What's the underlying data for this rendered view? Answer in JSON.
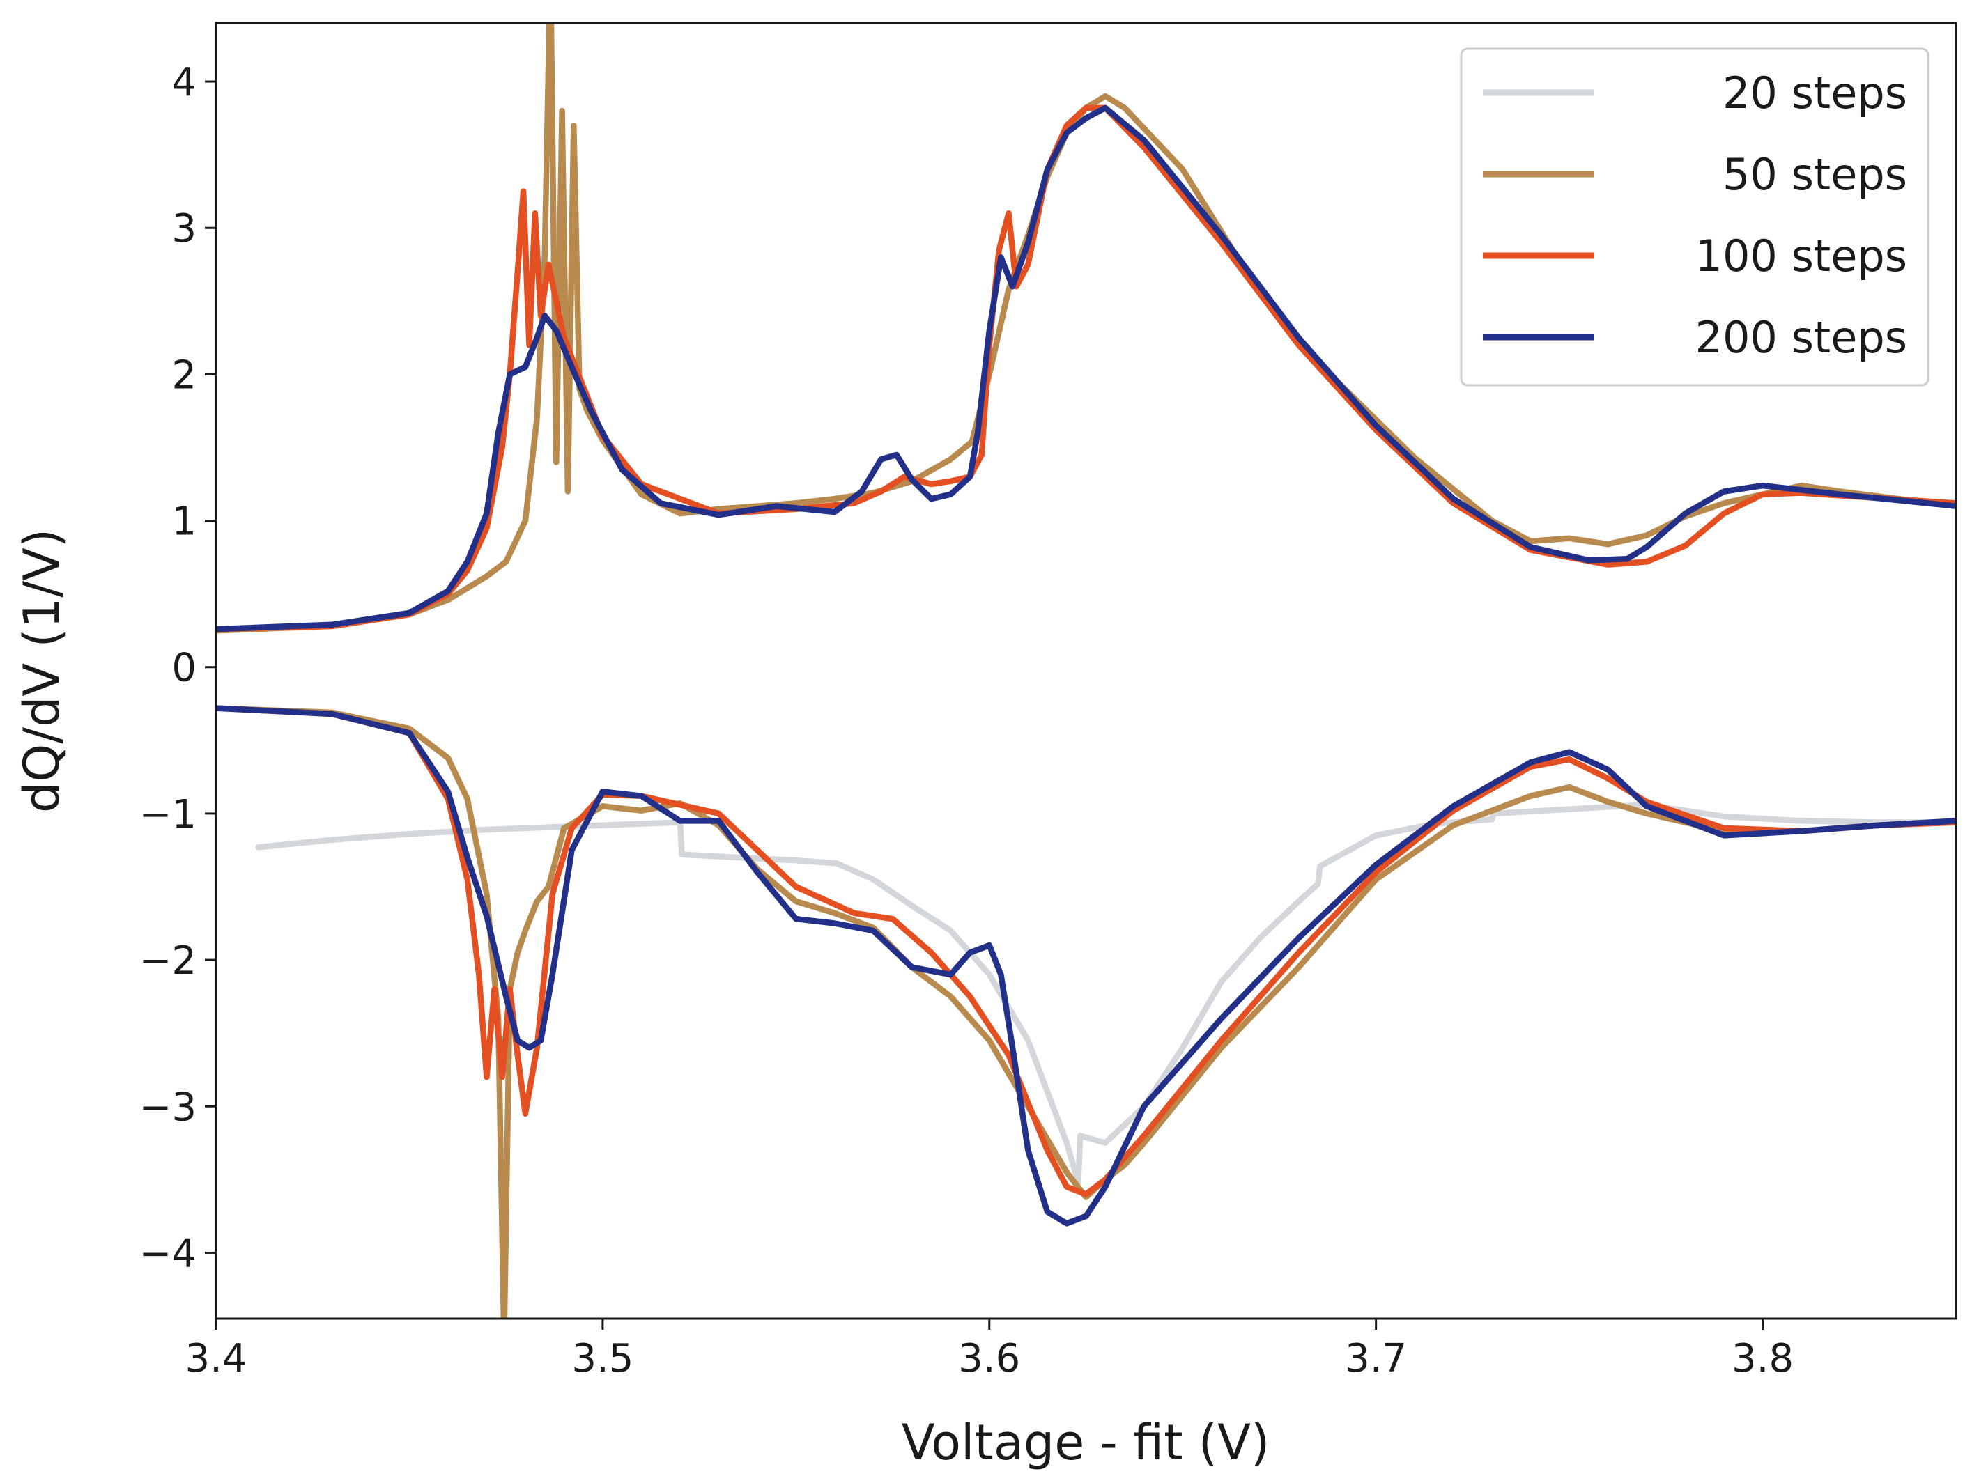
{
  "chart_data": {
    "type": "line",
    "title": "",
    "xlabel": "Voltage - fit (V)",
    "ylabel": "dQ/dV (1/V)",
    "xlim": [
      3.4,
      3.85
    ],
    "ylim": [
      -4.45,
      4.4
    ],
    "xticks": [
      3.4,
      3.5,
      3.6,
      3.7,
      3.8
    ],
    "xtick_labels": [
      "3.4",
      "3.5",
      "3.6",
      "3.7",
      "3.8"
    ],
    "yticks": [
      -4,
      -3,
      -2,
      -1,
      0,
      1,
      2,
      3,
      4
    ],
    "ytick_labels": [
      "−4",
      "−3",
      "−2",
      "−1",
      "0",
      "1",
      "2",
      "3",
      "4"
    ],
    "grid": false,
    "legend_position": "top-right",
    "series": [
      {
        "name": "20 steps",
        "label": "20 steps",
        "color": "#d3d6da",
        "segments": [
          {
            "x": [
              3.411,
              3.43,
              3.45,
              3.47,
              3.49,
              3.51,
              3.52,
              3.5205,
              3.535,
              3.55,
              3.5605,
              3.57,
              3.58,
              3.59,
              3.6,
              3.61,
              3.62,
              3.623,
              3.6235,
              3.63,
              3.64,
              3.65,
              3.66,
              3.67,
              3.68,
              3.685,
              3.6855,
              3.7,
              3.715,
              3.73,
              3.7305,
              3.75,
              3.77,
              3.79,
              3.81,
              3.83,
              3.85
            ],
            "y": [
              -1.23,
              -1.18,
              -1.14,
              -1.11,
              -1.09,
              -1.07,
              -1.06,
              -1.28,
              -1.3,
              -1.32,
              -1.34,
              -1.45,
              -1.63,
              -1.8,
              -2.1,
              -2.55,
              -3.25,
              -3.52,
              -3.2,
              -3.25,
              -3.0,
              -2.6,
              -2.15,
              -1.85,
              -1.6,
              -1.48,
              -1.36,
              -1.15,
              -1.07,
              -1.04,
              -1.0,
              -0.97,
              -0.94,
              -1.02,
              -1.05,
              -1.06,
              -1.06
            ]
          }
        ]
      },
      {
        "name": "50 steps",
        "label": "50 steps",
        "color": "#b88a4e",
        "segments": [
          {
            "x": [
              3.4,
              3.43,
              3.45,
              3.46,
              3.47,
              3.475,
              3.48,
              3.483,
              3.485,
              3.4865,
              3.488,
              3.4895,
              3.491,
              3.4925,
              3.494,
              3.496,
              3.5,
              3.51,
              3.52,
              3.53,
              3.54,
              3.55,
              3.56,
              3.57,
              3.58,
              3.59,
              3.5955,
              3.6,
              3.605,
              3.61,
              3.615,
              3.62,
              3.625,
              3.63,
              3.635,
              3.65,
              3.67,
              3.69,
              3.71,
              3.73,
              3.74,
              3.75,
              3.76,
              3.77,
              3.78,
              3.79,
              3.8,
              3.81,
              3.82,
              3.85
            ],
            "y": [
              0.25,
              0.28,
              0.36,
              0.46,
              0.62,
              0.72,
              1.0,
              1.7,
              2.8,
              4.8,
              1.4,
              3.8,
              1.2,
              3.7,
              1.9,
              1.75,
              1.55,
              1.18,
              1.05,
              1.08,
              1.1,
              1.12,
              1.15,
              1.19,
              1.27,
              1.42,
              1.54,
              2.0,
              2.58,
              2.95,
              3.35,
              3.65,
              3.82,
              3.9,
              3.82,
              3.4,
              2.55,
              1.95,
              1.43,
              1.0,
              0.86,
              0.88,
              0.84,
              0.9,
              1.03,
              1.12,
              1.18,
              1.24,
              1.2,
              1.1
            ]
          },
          {
            "x": [
              3.4,
              3.43,
              3.45,
              3.46,
              3.465,
              3.47,
              3.473,
              3.4745,
              3.476,
              3.478,
              3.48,
              3.483,
              3.486,
              3.49,
              3.5,
              3.51,
              3.52,
              3.53,
              3.54,
              3.55,
              3.56,
              3.57,
              3.58,
              3.59,
              3.6,
              3.61,
              3.62,
              3.625,
              3.63,
              3.635,
              3.64,
              3.66,
              3.68,
              3.7,
              3.72,
              3.74,
              3.75,
              3.76,
              3.77,
              3.79,
              3.81,
              3.83,
              3.85
            ],
            "y": [
              -0.28,
              -0.31,
              -0.42,
              -0.62,
              -0.9,
              -1.55,
              -2.4,
              -4.6,
              -2.2,
              -1.95,
              -1.8,
              -1.6,
              -1.5,
              -1.1,
              -0.95,
              -0.98,
              -0.93,
              -1.08,
              -1.38,
              -1.6,
              -1.68,
              -1.78,
              -2.05,
              -2.25,
              -2.55,
              -3.0,
              -3.45,
              -3.62,
              -3.5,
              -3.4,
              -3.25,
              -2.6,
              -2.05,
              -1.45,
              -1.08,
              -0.88,
              -0.82,
              -0.92,
              -1.0,
              -1.12,
              -1.12,
              -1.08,
              -1.06
            ]
          }
        ]
      },
      {
        "name": "100 steps",
        "label": "100 steps",
        "color": "#e45022",
        "segments": [
          {
            "x": [
              3.4,
              3.43,
              3.45,
              3.46,
              3.465,
              3.47,
              3.474,
              3.476,
              3.478,
              3.4795,
              3.481,
              3.4825,
              3.484,
              3.486,
              3.49,
              3.5,
              3.51,
              3.53,
              3.55,
              3.565,
              3.572,
              3.578,
              3.585,
              3.59,
              3.595,
              3.598,
              3.6,
              3.6025,
              3.605,
              3.607,
              3.61,
              3.615,
              3.62,
              3.625,
              3.63,
              3.64,
              3.66,
              3.68,
              3.7,
              3.72,
              3.74,
              3.76,
              3.77,
              3.78,
              3.79,
              3.8,
              3.81,
              3.85
            ],
            "y": [
              0.26,
              0.28,
              0.36,
              0.5,
              0.66,
              0.95,
              1.5,
              2.0,
              2.7,
              3.25,
              2.2,
              3.1,
              2.4,
              2.75,
              2.25,
              1.58,
              1.25,
              1.05,
              1.08,
              1.12,
              1.2,
              1.3,
              1.25,
              1.27,
              1.3,
              1.45,
              2.2,
              2.85,
              3.1,
              2.6,
              2.75,
              3.4,
              3.7,
              3.82,
              3.82,
              3.55,
              2.9,
              2.2,
              1.62,
              1.12,
              0.8,
              0.7,
              0.72,
              0.83,
              1.05,
              1.18,
              1.19,
              1.12
            ]
          },
          {
            "x": [
              3.4,
              3.43,
              3.45,
              3.46,
              3.465,
              3.468,
              3.47,
              3.472,
              3.474,
              3.476,
              3.478,
              3.48,
              3.483,
              3.487,
              3.492,
              3.5,
              3.51,
              3.53,
              3.55,
              3.565,
              3.575,
              3.585,
              3.595,
              3.605,
              3.615,
              3.62,
              3.625,
              3.63,
              3.64,
              3.66,
              3.68,
              3.7,
              3.72,
              3.74,
              3.75,
              3.76,
              3.77,
              3.79,
              3.81,
              3.83,
              3.85
            ],
            "y": [
              -0.28,
              -0.32,
              -0.45,
              -0.9,
              -1.45,
              -2.1,
              -2.8,
              -2.2,
              -2.8,
              -2.2,
              -2.65,
              -3.05,
              -2.6,
              -1.55,
              -1.1,
              -0.87,
              -0.88,
              -1.0,
              -1.5,
              -1.68,
              -1.72,
              -1.95,
              -2.25,
              -2.65,
              -3.3,
              -3.55,
              -3.6,
              -3.5,
              -3.2,
              -2.55,
              -1.95,
              -1.4,
              -0.98,
              -0.68,
              -0.63,
              -0.76,
              -0.92,
              -1.1,
              -1.12,
              -1.08,
              -1.06
            ]
          }
        ]
      },
      {
        "name": "200 steps",
        "label": "200 steps",
        "color": "#23308a",
        "segments": [
          {
            "x": [
              3.4,
              3.43,
              3.45,
              3.46,
              3.465,
              3.47,
              3.473,
              3.476,
              3.48,
              3.483,
              3.485,
              3.488,
              3.492,
              3.497,
              3.505,
              3.515,
              3.53,
              3.545,
              3.56,
              3.567,
              3.572,
              3.576,
              3.58,
              3.585,
              3.59,
              3.595,
              3.597,
              3.6,
              3.603,
              3.606,
              3.61,
              3.615,
              3.62,
              3.625,
              3.63,
              3.64,
              3.66,
              3.68,
              3.7,
              3.72,
              3.74,
              3.755,
              3.765,
              3.77,
              3.78,
              3.79,
              3.8,
              3.82,
              3.85
            ],
            "y": [
              0.26,
              0.29,
              0.37,
              0.52,
              0.72,
              1.05,
              1.6,
              2.0,
              2.05,
              2.25,
              2.4,
              2.3,
              2.05,
              1.75,
              1.35,
              1.12,
              1.04,
              1.1,
              1.06,
              1.2,
              1.42,
              1.45,
              1.28,
              1.15,
              1.18,
              1.3,
              1.6,
              2.3,
              2.8,
              2.6,
              2.9,
              3.4,
              3.65,
              3.75,
              3.82,
              3.6,
              2.95,
              2.25,
              1.65,
              1.15,
              0.82,
              0.73,
              0.74,
              0.82,
              1.05,
              1.2,
              1.24,
              1.18,
              1.1
            ]
          },
          {
            "x": [
              3.4,
              3.43,
              3.45,
              3.46,
              3.465,
              3.47,
              3.475,
              3.478,
              3.481,
              3.484,
              3.487,
              3.492,
              3.5,
              3.51,
              3.52,
              3.53,
              3.54,
              3.55,
              3.56,
              3.57,
              3.58,
              3.59,
              3.595,
              3.6,
              3.603,
              3.606,
              3.61,
              3.615,
              3.62,
              3.625,
              3.63,
              3.64,
              3.66,
              3.68,
              3.7,
              3.72,
              3.74,
              3.75,
              3.76,
              3.77,
              3.79,
              3.81,
              3.83,
              3.85
            ],
            "y": [
              -0.28,
              -0.32,
              -0.45,
              -0.85,
              -1.3,
              -1.7,
              -2.25,
              -2.55,
              -2.6,
              -2.55,
              -2.1,
              -1.25,
              -0.85,
              -0.88,
              -1.05,
              -1.05,
              -1.4,
              -1.72,
              -1.75,
              -1.8,
              -2.05,
              -2.1,
              -1.95,
              -1.9,
              -2.1,
              -2.6,
              -3.3,
              -3.72,
              -3.8,
              -3.75,
              -3.55,
              -3.0,
              -2.4,
              -1.85,
              -1.35,
              -0.95,
              -0.65,
              -0.58,
              -0.7,
              -0.95,
              -1.15,
              -1.12,
              -1.08,
              -1.05
            ]
          }
        ]
      }
    ]
  }
}
